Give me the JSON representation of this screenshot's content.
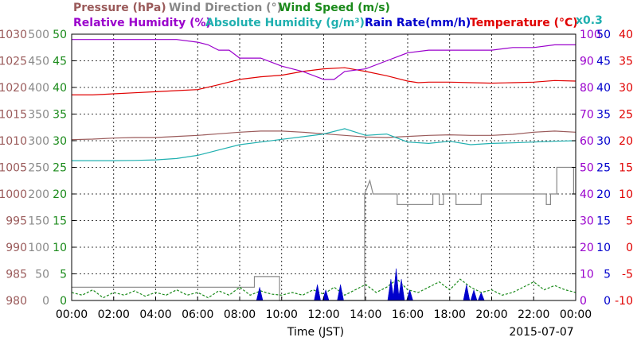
{
  "chart_data": {
    "type": "line",
    "date": "2015-07-07",
    "xlabel": "Time (JST)",
    "x_ticks": [
      "00:00",
      "02:00",
      "04:00",
      "06:00",
      "08:00",
      "10:00",
      "12:00",
      "14:00",
      "16:00",
      "18:00",
      "20:00",
      "22:00",
      "00:00"
    ],
    "xlim_hours": [
      0,
      24
    ],
    "grid": true,
    "legend": [
      {
        "text": "Pressure (hPa)",
        "color": "#9a5a5a"
      },
      {
        "text": "Wind Direction (°)",
        "color": "#888888"
      },
      {
        "text": "Wind Speed (m/s)",
        "color": "#1a8a1a"
      },
      {
        "text": "Relative Humidity (%)",
        "color": "#9a00cc"
      },
      {
        "text": "Absolute Humidity (g/m³)",
        "color": "#20b0b0"
      },
      {
        "text": "Rain Rate(mm/h)",
        "color": "#0000cc"
      },
      {
        "text": "Temperature (°C)",
        "color": "#e00000"
      },
      {
        "text": "x0.3",
        "color": "#20b0b0"
      }
    ],
    "axes": {
      "pressure": {
        "ticks": [
          "1030",
          "1025",
          "1020",
          "1015",
          "1010",
          "1005",
          "1000",
          "995",
          "990",
          "985",
          "980"
        ],
        "ylim": [
          980,
          1030
        ],
        "color": "#9a5a5a"
      },
      "wind_direction": {
        "ticks": [
          "500",
          "450",
          "400",
          "350",
          "300",
          "250",
          "200",
          "150",
          "100",
          "50",
          "0"
        ],
        "ylim": [
          0,
          500
        ],
        "color": "#888888"
      },
      "wind_speed": {
        "ticks": [
          "50",
          "45",
          "40",
          "35",
          "30",
          "25",
          "20",
          "15",
          "10",
          "5",
          "0"
        ],
        "ylim": [
          0,
          50
        ],
        "color": "#1a8a1a"
      },
      "relative_humidity": {
        "ticks": [
          "100",
          "90",
          "80",
          "70",
          "60",
          "50",
          "40",
          "30",
          "20",
          "10",
          "0"
        ],
        "ylim": [
          0,
          100
        ],
        "color": "#9a00cc"
      },
      "rain_rate": {
        "ticks": [
          "50",
          "45",
          "40",
          "35",
          "30",
          "25",
          "20",
          "15",
          "10",
          "5",
          "0"
        ],
        "ylim": [
          0,
          50
        ],
        "color": "#0000cc"
      },
      "temperature": {
        "ticks": [
          "40",
          "35",
          "30",
          "25",
          "20",
          "15",
          "10",
          "5",
          "0",
          "-5",
          "-10"
        ],
        "ylim": [
          -10,
          40
        ],
        "color": "#e00000"
      }
    },
    "series": [
      {
        "name": "Pressure (hPa)",
        "axis": "pressure",
        "color": "#9a5a5a",
        "style": "solid",
        "x": [
          0,
          1,
          2,
          3,
          4,
          5,
          6,
          7,
          8,
          9,
          10,
          11,
          12,
          13,
          14,
          15,
          16,
          17,
          18,
          19,
          20,
          21,
          22,
          23,
          24
        ],
        "y": [
          1010.2,
          1010.3,
          1010.5,
          1010.6,
          1010.6,
          1010.8,
          1011,
          1011.3,
          1011.6,
          1011.8,
          1011.8,
          1011.6,
          1011.3,
          1011,
          1010.7,
          1010.6,
          1010.8,
          1011,
          1011.1,
          1011,
          1011,
          1011.2,
          1011.6,
          1011.8,
          1011.6
        ]
      },
      {
        "name": "Temperature (°C)",
        "axis": "temperature",
        "color": "#e00000",
        "style": "solid",
        "x": [
          0,
          1,
          2,
          3,
          4,
          5,
          6,
          7,
          8,
          9,
          10,
          11,
          12,
          13,
          14,
          15,
          16,
          16.5,
          17,
          18,
          19,
          20,
          21,
          22,
          23,
          24
        ],
        "y": [
          28.6,
          28.6,
          28.8,
          29,
          29.2,
          29.4,
          29.6,
          30.5,
          31.5,
          32,
          32.3,
          33,
          33.5,
          33.7,
          33,
          32.2,
          31.2,
          30.9,
          31,
          31,
          30.9,
          30.8,
          30.9,
          31,
          31.3,
          31.2
        ]
      },
      {
        "name": "Absolute Humidity (g/m³)",
        "axis": "relative_humidity",
        "color": "#20b0b0",
        "style": "solid",
        "x": [
          0,
          1,
          2,
          3,
          4,
          5,
          6,
          7,
          8,
          9,
          10,
          11,
          12,
          13,
          14,
          15,
          16,
          17,
          18,
          19,
          20,
          21,
          22,
          23,
          24
        ],
        "y": [
          52.5,
          52.5,
          52.5,
          52.6,
          52.8,
          53.3,
          54.5,
          56.5,
          58.5,
          59.5,
          60.5,
          61.5,
          62.5,
          64.5,
          62,
          62.5,
          59.5,
          59,
          59.8,
          58.5,
          59,
          59.2,
          59.5,
          59.8,
          60
        ]
      },
      {
        "name": "Relative Humidity (%)",
        "axis": "relative_humidity",
        "color": "#9a00cc",
        "style": "solid",
        "x": [
          0,
          1,
          2,
          3,
          4,
          5,
          6,
          6.5,
          7,
          7.5,
          8,
          9,
          10,
          11,
          12,
          12.5,
          13,
          14,
          15,
          16,
          17,
          18,
          19,
          20,
          21,
          22,
          23,
          24
        ],
        "y": [
          98,
          98,
          98,
          98,
          98,
          98,
          97,
          96,
          94,
          94,
          91,
          91,
          88,
          86,
          83,
          83,
          86,
          87,
          90,
          93,
          94,
          94,
          94,
          94,
          95,
          95,
          96,
          96
        ]
      },
      {
        "name": "Wind Direction (°)",
        "axis": "wind_direction",
        "color": "#888888",
        "style": "solid",
        "x": [
          0,
          8.7,
          8.7,
          9.9,
          9.9,
          13.95,
          13.95,
          14.2,
          14.35,
          14.5,
          15.5,
          15.5,
          17.2,
          17.2,
          17.5,
          17.5,
          17.7,
          17.7,
          18.3,
          18.3,
          19.5,
          19.5,
          22.6,
          22.6,
          22.8,
          22.8,
          23.1,
          23.1,
          23.9,
          23.9,
          24
        ],
        "y": [
          25,
          25,
          45,
          45,
          0,
          0,
          200,
          225,
          200,
          200,
          200,
          180,
          180,
          200,
          200,
          180,
          180,
          200,
          200,
          180,
          180,
          200,
          200,
          180,
          180,
          200,
          200,
          250,
          250,
          200,
          200
        ]
      },
      {
        "name": "Wind Speed (m/s)",
        "axis": "wind_speed",
        "color": "#1a8a1a",
        "style": "dashed",
        "x": [
          0,
          0.5,
          1,
          1.5,
          2,
          2.5,
          3,
          3.5,
          4,
          4.5,
          5,
          5.5,
          6,
          6.5,
          7,
          7.5,
          8,
          8.5,
          9,
          9.5,
          10,
          10.5,
          11,
          11.5,
          12,
          12.5,
          13,
          13.5,
          14,
          14.5,
          15,
          15.5,
          16,
          16.5,
          17,
          17.5,
          18,
          18.5,
          19,
          19.5,
          20,
          20.5,
          21,
          21.5,
          22,
          22.5,
          23,
          23.5,
          24
        ],
        "y": [
          1.5,
          1,
          2,
          0.5,
          1.5,
          1,
          1.8,
          0.8,
          1.5,
          1,
          2,
          1,
          1.5,
          0.5,
          1.8,
          1,
          2.5,
          1,
          1.8,
          1.2,
          1,
          1.5,
          1,
          2,
          1.2,
          2.5,
          1,
          2,
          3,
          1.5,
          2.5,
          4,
          2,
          1.5,
          2.5,
          3.5,
          2,
          4,
          2.5,
          1.5,
          2,
          1,
          1.5,
          2.5,
          3.5,
          2,
          2.8,
          2,
          1.5
        ]
      }
    ],
    "rain_rate": {
      "axis": "rain_rate",
      "color": "#0000cc",
      "events": [
        {
          "x": 8.95,
          "y": 2.5
        },
        {
          "x": 11.7,
          "y": 3
        },
        {
          "x": 12.1,
          "y": 2
        },
        {
          "x": 12.8,
          "y": 3
        },
        {
          "x": 15.2,
          "y": 4
        },
        {
          "x": 15.45,
          "y": 6
        },
        {
          "x": 15.7,
          "y": 4
        },
        {
          "x": 16.1,
          "y": 2
        },
        {
          "x": 18.8,
          "y": 3
        },
        {
          "x": 19.15,
          "y": 2
        },
        {
          "x": 19.5,
          "y": 1.5
        }
      ]
    }
  }
}
